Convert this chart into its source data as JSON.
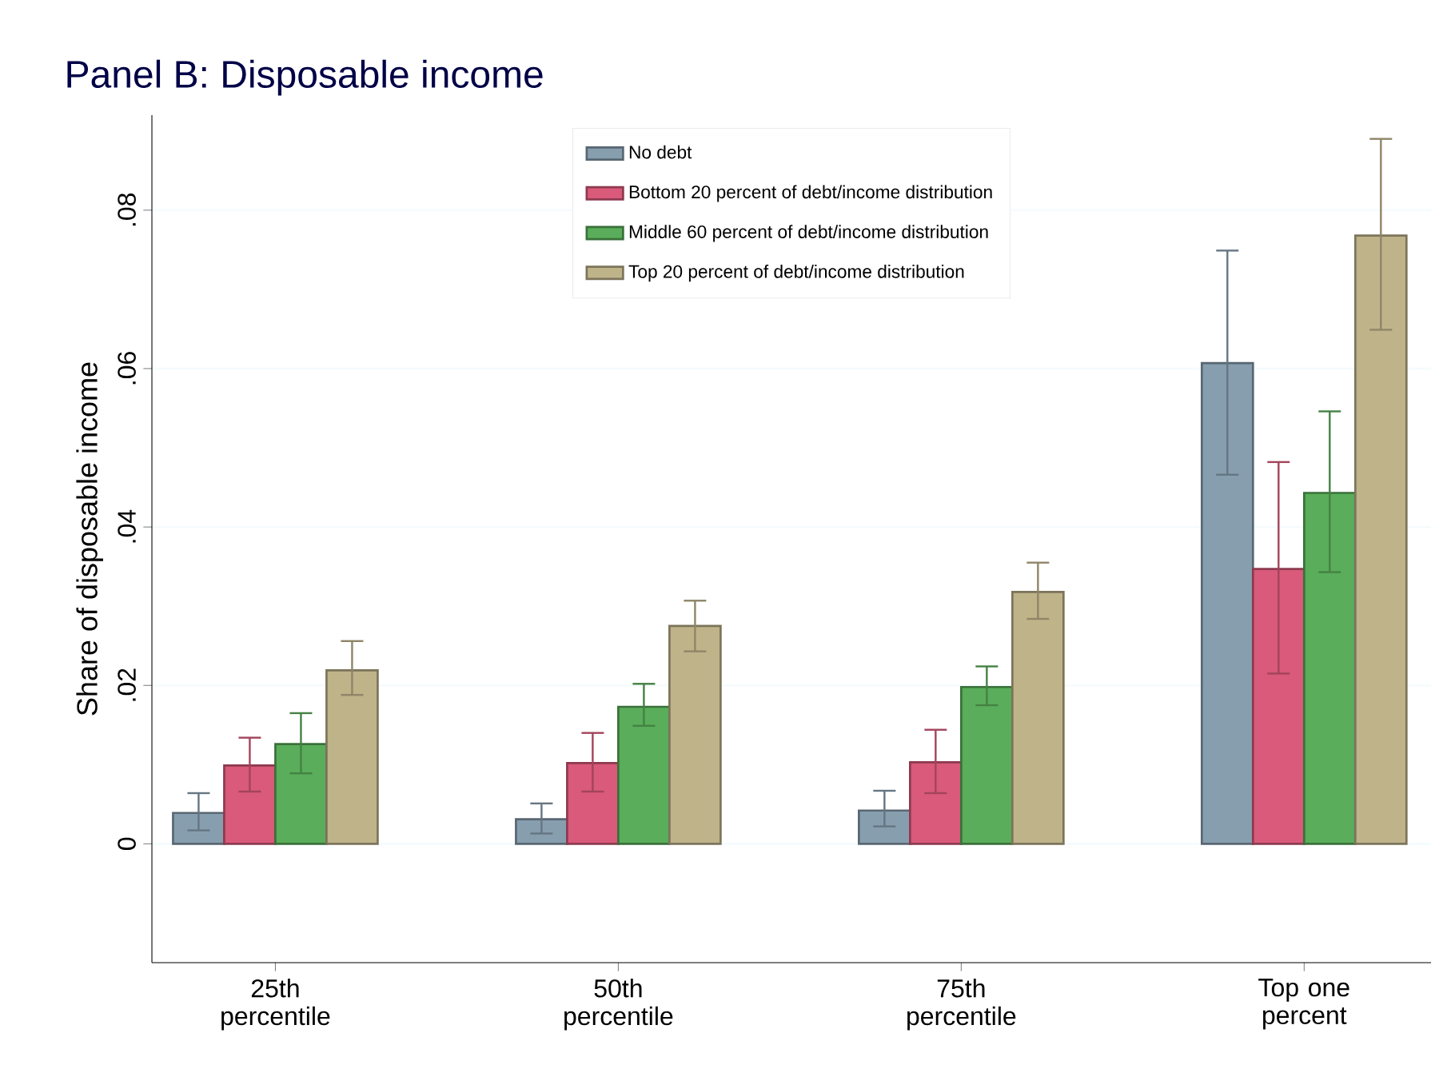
{
  "chart_data": {
    "type": "bar",
    "title": "Panel B: Disposable income",
    "ylabel": "Share of disposable income",
    "categories": [
      "25th percentile",
      "50th percentile",
      "75th percentile",
      "Top one percent"
    ],
    "series": [
      {
        "name": "No debt",
        "color": "#879eaf",
        "values": [
          0.0039,
          0.0031,
          0.0042,
          0.0607
        ],
        "errors": [
          [
            0.0017,
            0.0064
          ],
          [
            0.0013,
            0.0051
          ],
          [
            0.0022,
            0.0067
          ],
          [
            0.0466,
            0.0749
          ]
        ]
      },
      {
        "name": "Bottom 20 percent of debt/income distribution",
        "color": "#d95a7a",
        "values": [
          0.0099,
          0.0102,
          0.0103,
          0.0347
        ],
        "errors": [
          [
            0.0066,
            0.0134
          ],
          [
            0.0066,
            0.014
          ],
          [
            0.0064,
            0.0144
          ],
          [
            0.0215,
            0.0482
          ]
        ]
      },
      {
        "name": "Middle 60 percent of debt/income distribution",
        "color": "#5aad5a",
        "values": [
          0.0126,
          0.0173,
          0.0198,
          0.0443
        ],
        "errors": [
          [
            0.0089,
            0.0165
          ],
          [
            0.0149,
            0.0202
          ],
          [
            0.0175,
            0.0224
          ],
          [
            0.0343,
            0.0546
          ]
        ]
      },
      {
        "name": "Top 20 percent of debt/income distribution",
        "color": "#bfb38a",
        "values": [
          0.0219,
          0.0275,
          0.0318,
          0.0768
        ],
        "errors": [
          [
            0.0188,
            0.0256
          ],
          [
            0.0243,
            0.0307
          ],
          [
            0.0284,
            0.0355
          ],
          [
            0.0649,
            0.089
          ]
        ]
      }
    ],
    "ylim": [
      -0.015,
      0.092
    ],
    "yticks": [
      0,
      {
        "value": 0.02,
        "label": ".02"
      },
      {
        "value": 0.04,
        "label": ".04"
      },
      {
        "value": 0.06,
        "label": ".06"
      },
      {
        "value": 0.08,
        "label": ".08"
      }
    ],
    "grid": "y",
    "legend": "top"
  }
}
